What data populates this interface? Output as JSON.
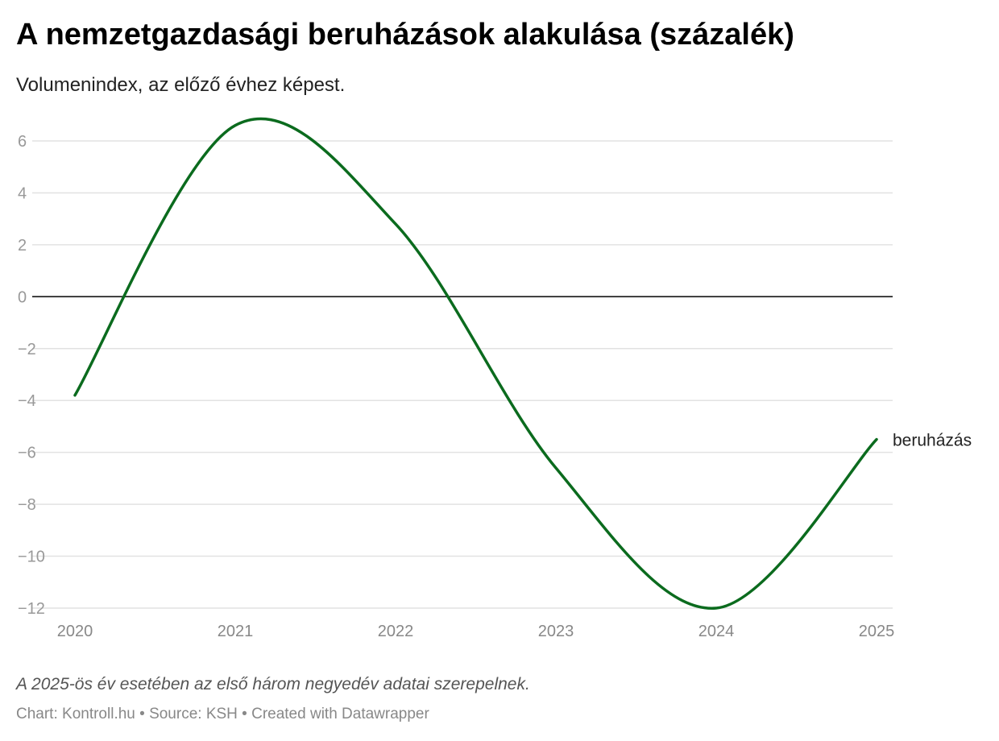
{
  "title": "A nemzetgazdasági beruházások alakulása (százalék)",
  "subtitle": "Volumenindex, az előző évhez képest.",
  "note": "A 2025-ös év esetében az első három negyedév adatai szerepelnek.",
  "footer": "Chart: Kontroll.hu • Source: KSH • Created with Datawrapper",
  "chart_data": {
    "type": "line",
    "x": [
      2020,
      2021,
      2022,
      2023,
      2024,
      2025
    ],
    "series": [
      {
        "name": "beruházás",
        "values": [
          -3.8,
          6.6,
          2.8,
          -6.6,
          -12.0,
          -5.5
        ],
        "color": "#0b6b1e"
      }
    ],
    "yticks": [
      6,
      4,
      2,
      0,
      -2,
      -4,
      -6,
      -8,
      -10,
      -12
    ],
    "ytick_labels": [
      "6",
      "4",
      "2",
      "0",
      "−2",
      "−4",
      "−6",
      "−8",
      "−10",
      "−12"
    ],
    "xtick_labels": [
      "2020",
      "2021",
      "2022",
      "2023",
      "2024",
      "2025"
    ],
    "ylim": [
      -12,
      6
    ],
    "grid": true
  }
}
